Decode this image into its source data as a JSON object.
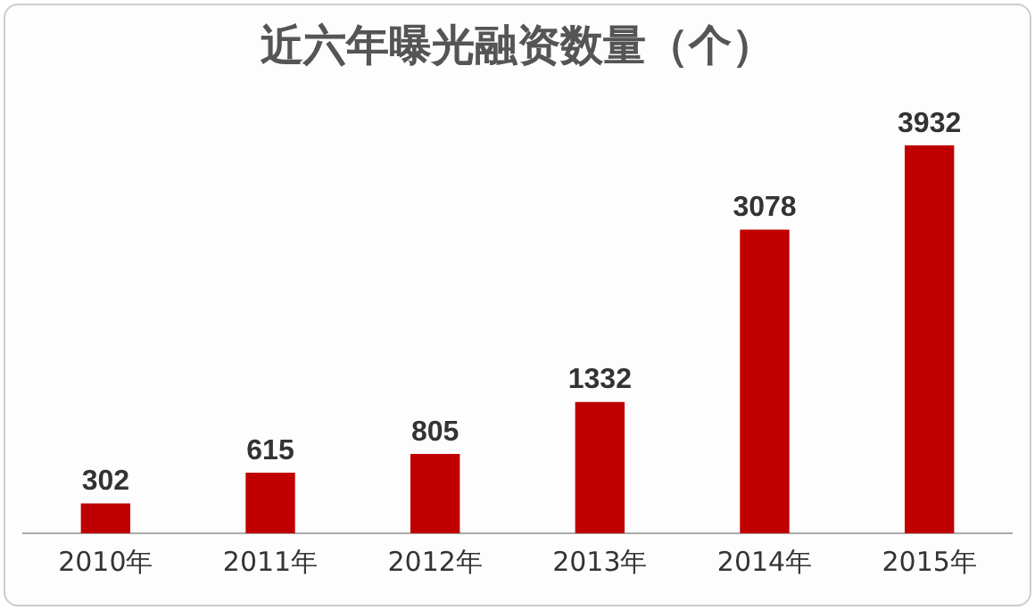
{
  "chart_data": {
    "type": "bar",
    "title": "近六年曝光融资数量（个）",
    "categories": [
      "2010年",
      "2011年",
      "2012年",
      "2013年",
      "2014年",
      "2015年"
    ],
    "values": [
      302,
      615,
      805,
      1332,
      3078,
      3932
    ],
    "color": "#c00000",
    "data_labels": true,
    "grid": false,
    "legend": false
  }
}
